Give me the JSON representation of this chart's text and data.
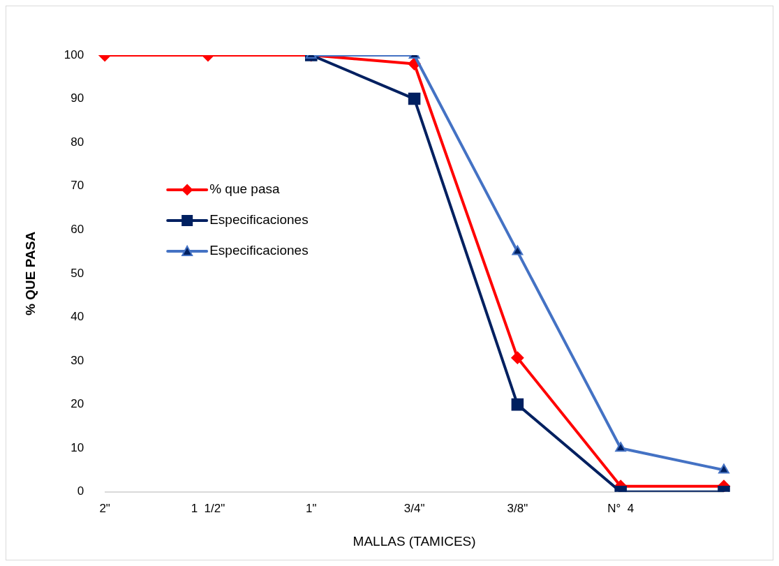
{
  "chart_data": {
    "type": "line",
    "xlabel": "MALLAS (TAMICES)",
    "ylabel": "% QUE PASA",
    "categories": [
      "2\"",
      "1  1/2\"",
      "1\"",
      "3/4\"",
      "3/8\"",
      "N°  4",
      null
    ],
    "ylim": [
      0,
      100
    ],
    "yticks": [
      0,
      10,
      20,
      30,
      40,
      50,
      60,
      70,
      80,
      90,
      100
    ],
    "grid": false,
    "legend": "left",
    "line_style": "solid",
    "series": [
      {
        "name": "% que pasa",
        "color": "#ff0000",
        "marker": "diamond",
        "values": [
          100,
          100,
          100,
          98,
          30.7,
          1.3,
          1.3
        ]
      },
      {
        "name": "Especificaciones",
        "color": "#002060",
        "marker": "square",
        "values": [
          null,
          null,
          100,
          90,
          20,
          0,
          0
        ]
      },
      {
        "name": "Especificaciones",
        "color": "#4472c4",
        "marker": "triangle",
        "values": [
          null,
          null,
          100,
          100,
          55,
          10,
          5
        ]
      }
    ]
  }
}
